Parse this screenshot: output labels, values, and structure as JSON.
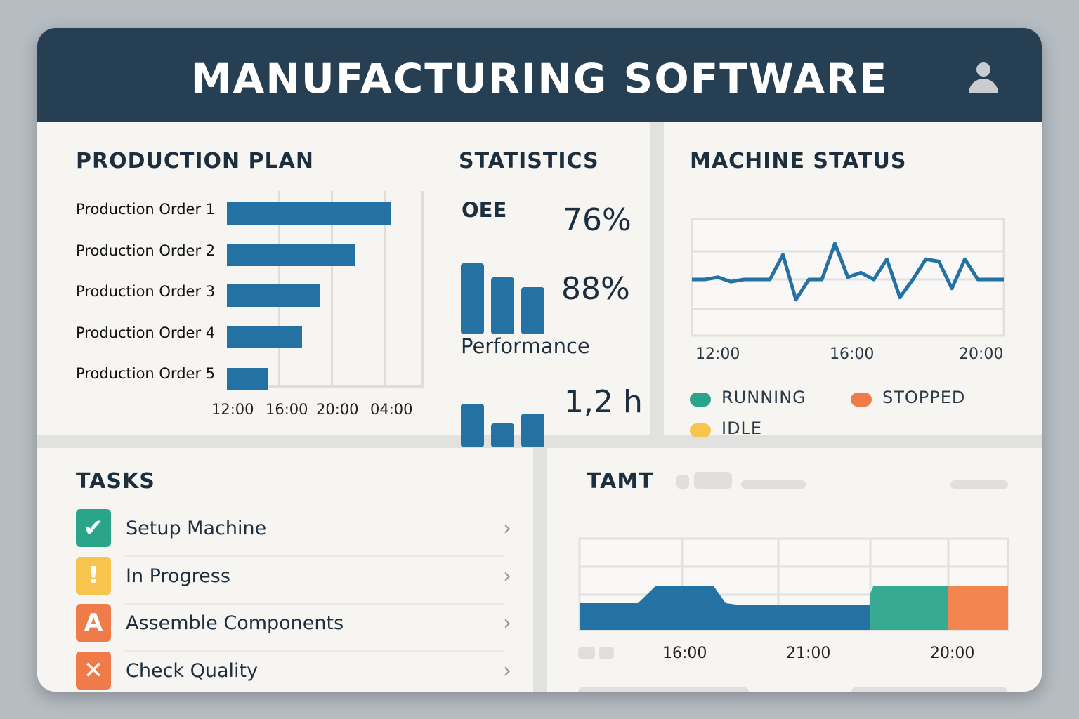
{
  "header": {
    "title": "MANUFACTURING SOFTWARE",
    "user_icon": "user-icon"
  },
  "production_plan": {
    "title": "PRODUCTION PLAN",
    "orders": [
      {
        "label": "Production Order 1",
        "progress": 0.85
      },
      {
        "label": "Production Order 2",
        "progress": 0.66
      },
      {
        "label": "Production Order 3",
        "progress": 0.48
      },
      {
        "label": "Production Order 4",
        "progress": 0.39
      },
      {
        "label": "Production Order 5",
        "progress": 0.21
      }
    ],
    "ticks": [
      "12:00",
      "16:00",
      "20:00",
      "04:00"
    ]
  },
  "statistics": {
    "title": "STATISTICS",
    "oee_label": "OEE",
    "oee_value_1": "76%",
    "oee_value_2": "88%",
    "oee_bars": [
      100,
      80,
      66
    ],
    "performance_label": "Performance",
    "performance_value": "1,2 h",
    "performance_bars": [
      100,
      55,
      78
    ]
  },
  "machine_status": {
    "title": "MACHINE STATUS",
    "ticks": [
      "12:00",
      "16:00",
      "20:00"
    ],
    "series": [
      0,
      0,
      0.1,
      -0.1,
      0,
      0,
      0,
      1.1,
      -0.9,
      0,
      0,
      1.6,
      0.1,
      0.3,
      0,
      0.9,
      -0.8,
      0,
      0.9,
      0.8,
      -0.4,
      0.9,
      0,
      0,
      0
    ],
    "legend": [
      {
        "label": "RUNNING",
        "color": "#2aa58a"
      },
      {
        "label": "STOPPED",
        "color": "#f07b4a"
      },
      {
        "label": "IDLE",
        "color": "#f7c54d"
      }
    ]
  },
  "tasks": {
    "title": "TASKS",
    "items": [
      {
        "label": "Setup Machine",
        "icon": "check-icon",
        "glyph": "✔",
        "color": "#2aa58a"
      },
      {
        "label": "In Progress",
        "icon": "exclamation-icon",
        "glyph": "!",
        "color": "#f7c54d"
      },
      {
        "label": "Assemble Components",
        "icon": "letter-a-icon",
        "glyph": "A",
        "color": "#f07b4a"
      },
      {
        "label": "Check Quality",
        "icon": "x-icon",
        "glyph": "✕",
        "color": "#f07b4a"
      }
    ]
  },
  "tamt": {
    "title": "TAMT",
    "ticks": [
      "16:00",
      "21:00",
      "20:00"
    ],
    "segments": [
      {
        "state": "running",
        "color": "#2471a3"
      },
      {
        "state": "idle-green",
        "color": "#37ab92"
      },
      {
        "state": "stopped",
        "color": "#f38650"
      }
    ]
  }
}
